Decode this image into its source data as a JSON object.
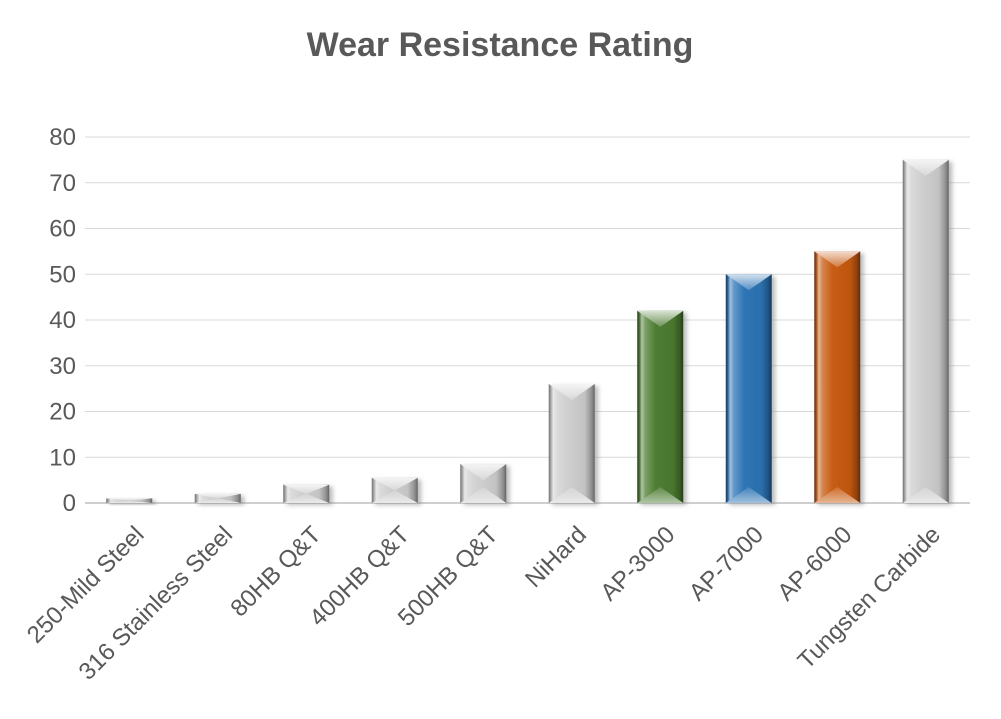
{
  "chart_data": {
    "type": "bar",
    "title": "Wear Resistance Rating",
    "categories": [
      "250-Mild Steel",
      "316 Stainless Steel",
      "80HB Q&T",
      "400HB Q&T",
      "500HB Q&T",
      "NiHard",
      "AP-3000",
      "AP-7000",
      "AP-6000",
      "Tungsten Carbide"
    ],
    "values": [
      1,
      2,
      4,
      5.5,
      8.5,
      26,
      42,
      50,
      55,
      75
    ],
    "bar_colors": [
      "#cfcfcf",
      "#cfcfcf",
      "#cfcfcf",
      "#cfcfcf",
      "#cfcfcf",
      "#cfcfcf",
      "#4e7d32",
      "#2e75b6",
      "#c85c12",
      "#cfcfcf"
    ],
    "xlabel": "",
    "ylabel": "",
    "ylim": [
      0,
      80
    ],
    "ytick_step": 10,
    "ytick_labels": [
      "0",
      "10",
      "20",
      "30",
      "40",
      "50",
      "60",
      "70",
      "80"
    ],
    "grid": "horizontal",
    "legend": "none",
    "bar_style": "3d-bevel",
    "colors": {
      "title_text": "#595959",
      "axis_text": "#595959",
      "gridline": "#d9d9d9",
      "axis_line": "#bfbfbf",
      "background": "#ffffff"
    }
  }
}
